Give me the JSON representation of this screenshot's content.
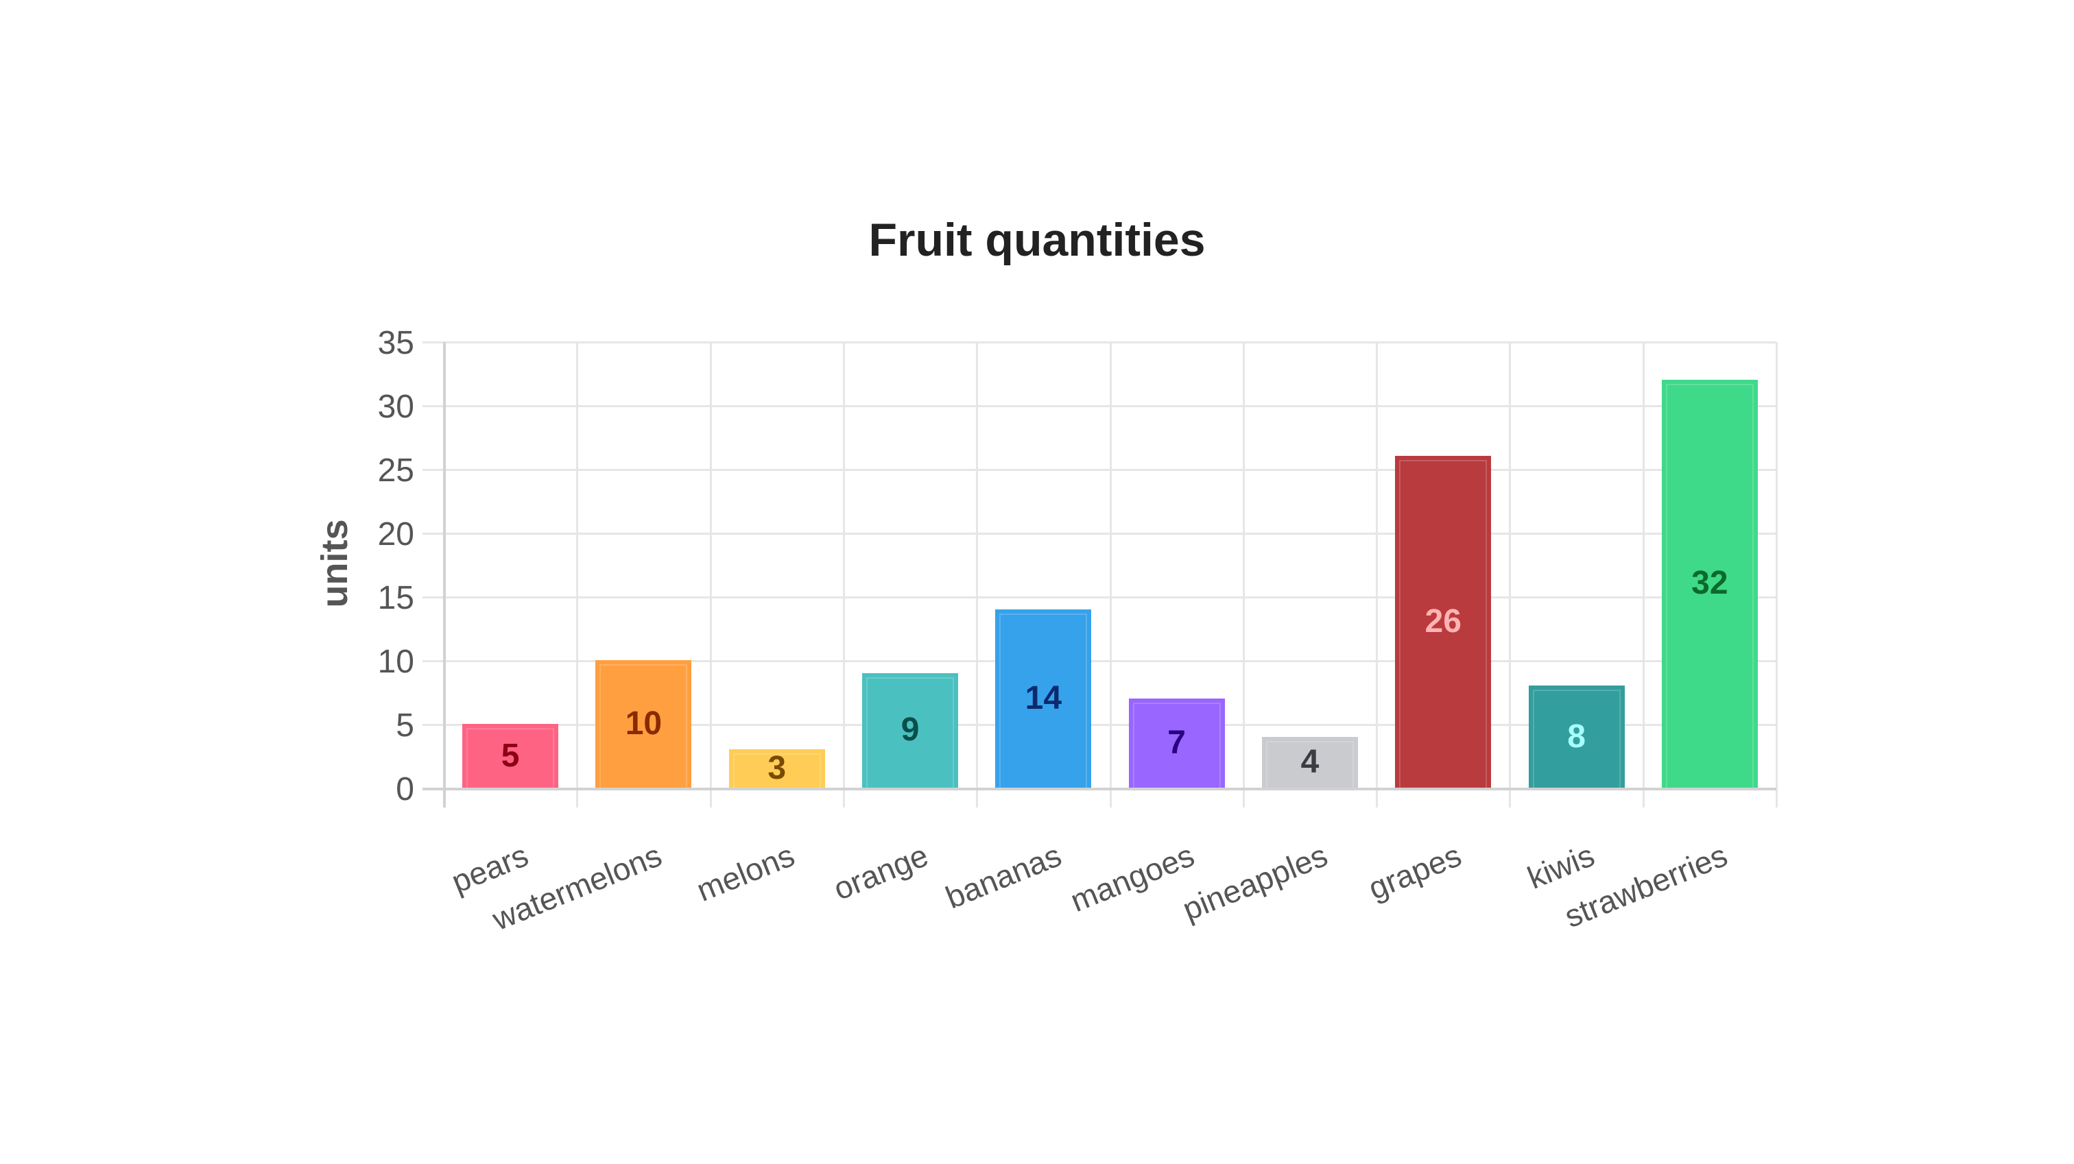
{
  "chart_data": {
    "type": "bar",
    "title": "Fruit quantities",
    "xlabel": "",
    "ylabel": "units",
    "ylim": [
      0,
      35
    ],
    "yticks": [
      0,
      5,
      10,
      15,
      20,
      25,
      30,
      35
    ],
    "grid": true,
    "legend": "none",
    "data_labels": "centered in bar",
    "categories": [
      "pears",
      "watermelons",
      "melons",
      "orange",
      "bananas",
      "mangoes",
      "pineapples",
      "grapes",
      "kiwis",
      "strawberries"
    ],
    "values": [
      5,
      10,
      3,
      9,
      14,
      7,
      4,
      26,
      8,
      32
    ],
    "colors": [
      "#FF6384",
      "#FF9F40",
      "#FFCD56",
      "#4BC0C0",
      "#36A2EB",
      "#9966FF",
      "#C9CBCF",
      "#B93B3E",
      "#339E9E",
      "#3FD98A"
    ],
    "label_colors": [
      "#8B0014",
      "#8A2A00",
      "#7A4A00",
      "#0A4E4A",
      "#0B2A6E",
      "#2A0080",
      "#3A3D42",
      "#FFB3B3",
      "#A8FFFF",
      "#0B6A2A"
    ]
  },
  "title": "Fruit quantities",
  "y_axis": {
    "title": "units",
    "ticks": [
      "0",
      "5",
      "10",
      "15",
      "20",
      "25",
      "30",
      "35"
    ]
  },
  "bars": [
    {
      "category": "pears",
      "value": "5"
    },
    {
      "category": "watermelons",
      "value": "10"
    },
    {
      "category": "melons",
      "value": "3"
    },
    {
      "category": "orange",
      "value": "9"
    },
    {
      "category": "bananas",
      "value": "14"
    },
    {
      "category": "mangoes",
      "value": "7"
    },
    {
      "category": "pineapples",
      "value": "4"
    },
    {
      "category": "grapes",
      "value": "26"
    },
    {
      "category": "kiwis",
      "value": "8"
    },
    {
      "category": "strawberries",
      "value": "32"
    }
  ]
}
